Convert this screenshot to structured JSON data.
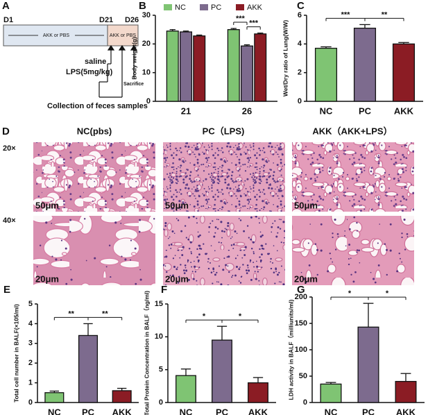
{
  "panel_a": {
    "panel": "A",
    "days": [
      "D1",
      "D21",
      "D26"
    ],
    "phases": [
      "AKK or PBS",
      "AKK or PBS"
    ],
    "events": [
      "saline",
      "LPS(5mg/kg)",
      "Sacrifice"
    ],
    "collection": "Collection of feces samples"
  },
  "panel_d": {
    "panel": "D",
    "columns": [
      "NC(pbs)",
      "PC（LPS)",
      "AKK（AKK+LPS）"
    ],
    "rows": [
      "20×",
      "40×"
    ],
    "scales": [
      [
        "50μm",
        "50μm",
        "50μm"
      ],
      [
        "20μm",
        "20μm",
        "20μm"
      ]
    ]
  },
  "chart_data": [
    {
      "type": "bar",
      "panel": "B",
      "y_label": "Body weight(g)",
      "categories": [
        "21",
        "26"
      ],
      "series": [
        {
          "name": "NC",
          "color": "#7fc473",
          "values": [
            24.5,
            25
          ],
          "errors": [
            0.5,
            0.4
          ]
        },
        {
          "name": "PC",
          "color": "#7d6b8e",
          "values": [
            24.2,
            19.3
          ],
          "errors": [
            0.3,
            0.4
          ]
        },
        {
          "name": "AKK",
          "color": "#8b1c24",
          "values": [
            22.8,
            23.5
          ],
          "errors": [
            0.3,
            0.3
          ]
        }
      ],
      "ylim": [
        0,
        30
      ],
      "yticks": [
        0,
        10,
        20,
        30
      ],
      "annotations": [
        "***",
        "***"
      ]
    },
    {
      "type": "bar",
      "panel": "C",
      "y_label": "Wet/Dry ratio of Lung(W/W)",
      "categories": [
        "NC",
        "PC",
        "AKK"
      ],
      "values": [
        3.7,
        5.1,
        4.0
      ],
      "errors": [
        0.1,
        0.25,
        0.1
      ],
      "colors": [
        "#7fc473",
        "#7d6b8e",
        "#8b1c24"
      ],
      "ylim": [
        0,
        6
      ],
      "yticks": [
        0,
        2,
        4,
        6
      ],
      "annotations": [
        "***",
        "**"
      ]
    },
    {
      "type": "bar",
      "panel": "E",
      "y_label": "Total cell number  in BALF(×105/ml)",
      "categories": [
        "NC",
        "PC",
        "AKK"
      ],
      "values": [
        0.5,
        3.4,
        0.6
      ],
      "errors": [
        0.08,
        0.6,
        0.12
      ],
      "colors": [
        "#7fc473",
        "#7d6b8e",
        "#8b1c24"
      ],
      "ylim": [
        0,
        5
      ],
      "yticks": [
        0,
        1,
        2,
        3,
        4,
        5
      ],
      "annotations": [
        "**",
        "**"
      ]
    },
    {
      "type": "bar",
      "panel": "F",
      "y_label": "Total Protein Concentration in BALF（ng/ml)",
      "categories": [
        "NC",
        "PC",
        "AKK"
      ],
      "values": [
        4.1,
        9.5,
        3.0
      ],
      "errors": [
        1.0,
        2.1,
        0.8
      ],
      "colors": [
        "#7fc473",
        "#7d6b8e",
        "#8b1c24"
      ],
      "ylim": [
        0,
        15
      ],
      "yticks": [
        0,
        5,
        10,
        15
      ],
      "annotations": [
        "*",
        "*"
      ]
    },
    {
      "type": "bar",
      "panel": "G",
      "y_label": "LDH activity in BALF（milliunits/ml)",
      "categories": [
        "NC",
        "PC",
        "AKK"
      ],
      "values": [
        35,
        143,
        40
      ],
      "errors": [
        3,
        45,
        15
      ],
      "colors": [
        "#7fc473",
        "#7d6b8e",
        "#8b1c24"
      ],
      "ylim": [
        0,
        200
      ],
      "yticks": [
        0,
        50,
        100,
        150,
        200
      ],
      "annotations": [
        "*",
        "*"
      ]
    }
  ]
}
